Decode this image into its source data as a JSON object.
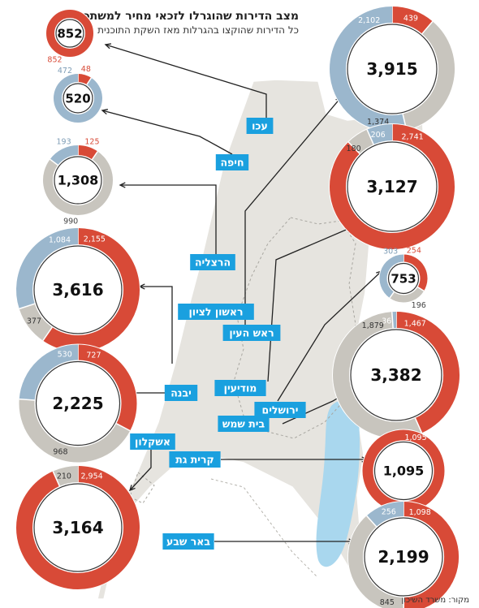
{
  "header": {
    "title": "מצב הדירות שהוגרלו לזכאי מחיר למשתכן",
    "subtitle": "כל הדירות שהוקצו בהגרלות מאז השקת התוכנית"
  },
  "source": "מקור: משרד השיכון",
  "colors": {
    "red_segment": "#d84a37",
    "blue_segment": "#9bb7cd",
    "gray_segment": "#c8c5be",
    "city_label_bg": "#1aa0df",
    "map_fill": "#e6e4df",
    "water": "#a9d7ee"
  },
  "chart_data": {
    "type": "donut",
    "title": "מצב הדירות שהוגרלו לזכאי מחיר למשתכן",
    "subtitle": "כל הדירות שהוקצו בהגרלות מאז השקת התוכנית",
    "series_colors": [
      "red",
      "blue",
      "gray"
    ],
    "cities": [
      {
        "name": "עכו",
        "total": "852",
        "red": 852,
        "blue": 0,
        "gray": 0
      },
      {
        "name": "חיפה",
        "total": "520",
        "red": 48,
        "blue": 472,
        "gray": 0
      },
      {
        "name": "הרצליה",
        "total": "1,308",
        "red": 125,
        "blue": 193,
        "gray": 990
      },
      {
        "name": "ראשון לציון",
        "total": "3,616",
        "red": 2155,
        "blue": 1084,
        "gray": 377
      },
      {
        "name": "יבנה",
        "total": "2,225",
        "red": 727,
        "blue": 530,
        "gray": 968
      },
      {
        "name": "אשקלון",
        "total": "3,164",
        "red": 2954,
        "blue": 0,
        "gray": 210
      },
      {
        "name": "ראש העין",
        "total": "3,915",
        "red": 439,
        "blue": 2102,
        "gray": 1374
      },
      {
        "name": "מודיעין",
        "total": "3,127",
        "red": 2741,
        "blue": 206,
        "gray": 180
      },
      {
        "name": "ירושלים",
        "total": "753",
        "red": 254,
        "blue": 303,
        "gray": 196
      },
      {
        "name": "בית שמש",
        "total": "3,382",
        "red": 1467,
        "blue": 36,
        "gray": 1879
      },
      {
        "name": "קרית גת",
        "total": "1,095",
        "red": 1095,
        "blue": 0,
        "gray": 0
      },
      {
        "name": "באר שבע",
        "total": "2,199",
        "red": 1098,
        "blue": 256,
        "gray": 845
      }
    ]
  }
}
